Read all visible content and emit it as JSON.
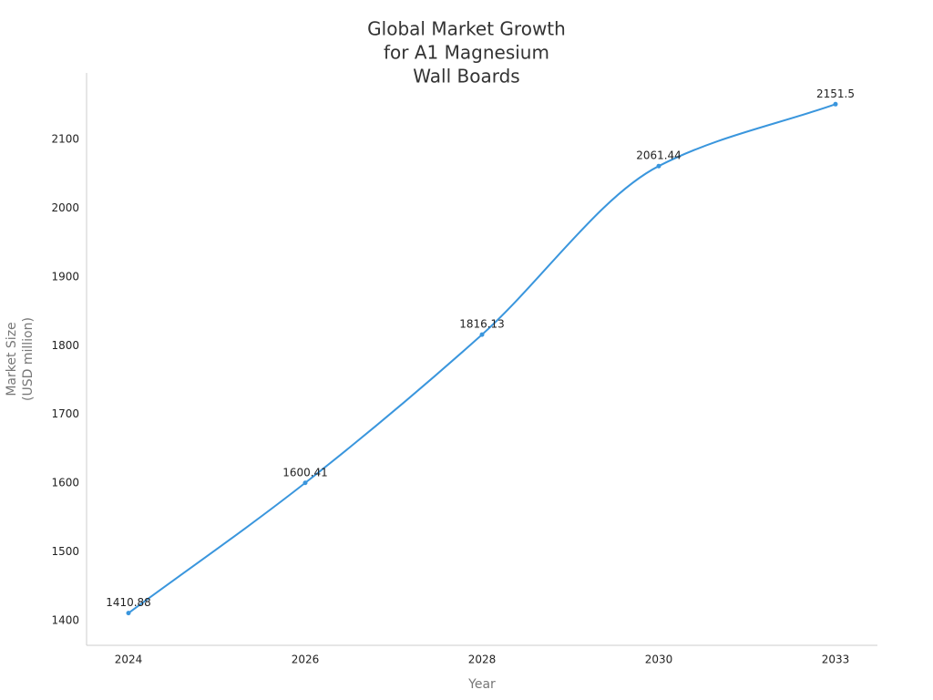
{
  "chart_data": {
    "type": "line",
    "title": [
      "Global Market Growth",
      "for A1 Magnesium",
      "Wall Boards"
    ],
    "xlabel": "Year",
    "ylabel": [
      "Market Size",
      "(USD million)"
    ],
    "categories": [
      "2024",
      "2026",
      "2028",
      "2030",
      "2033"
    ],
    "series": [
      {
        "name": "Market Size",
        "color": "#3a96dd",
        "values": [
          1410.88,
          1600.41,
          1816.13,
          2061.44,
          2151.5
        ]
      }
    ],
    "ylim": [
      1364,
      2197
    ],
    "yticks": [
      1400,
      1500,
      1600,
      1700,
      1800,
      1900,
      2000,
      2100
    ],
    "grid": false,
    "smooth": true
  }
}
